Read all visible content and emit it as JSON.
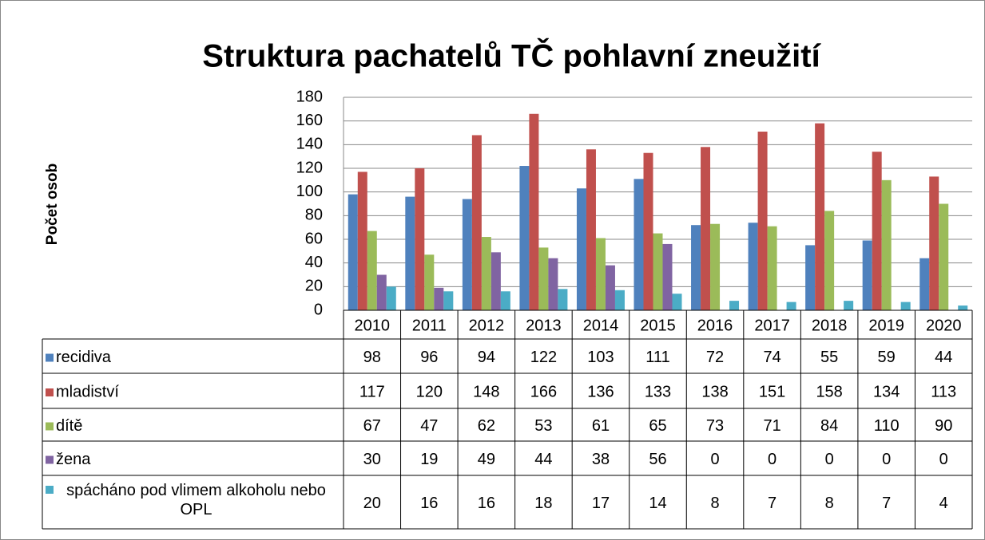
{
  "chart_data": {
    "type": "bar",
    "title": "Struktura pachatelů TČ pohlavní zneužití",
    "y_axis_label": "Počet osob",
    "categories": [
      "2010",
      "2011",
      "2012",
      "2013",
      "2014",
      "2015",
      "2016",
      "2017",
      "2018",
      "2019",
      "2020"
    ],
    "series": [
      {
        "name": "recidiva",
        "color": "#4f81bd",
        "values": [
          98,
          96,
          94,
          122,
          103,
          111,
          72,
          74,
          55,
          59,
          44
        ]
      },
      {
        "name": "mladiství",
        "color": "#c0504d",
        "values": [
          117,
          120,
          148,
          166,
          136,
          133,
          138,
          151,
          158,
          134,
          113
        ]
      },
      {
        "name": "dítě",
        "color": "#9bbb59",
        "values": [
          67,
          47,
          62,
          53,
          61,
          65,
          73,
          71,
          84,
          110,
          90
        ]
      },
      {
        "name": "žena",
        "color": "#8064a2",
        "values": [
          30,
          19,
          49,
          44,
          38,
          56,
          0,
          0,
          0,
          0,
          0
        ]
      },
      {
        "name": "spácháno pod vlimem alkoholu nebo OPL",
        "color": "#4bacc6",
        "values": [
          20,
          16,
          16,
          18,
          17,
          14,
          8,
          7,
          8,
          7,
          4
        ]
      }
    ],
    "ylim": [
      0,
      180
    ],
    "yticks": [
      0,
      20,
      40,
      60,
      80,
      100,
      120,
      140,
      160,
      180
    ],
    "grid": true
  }
}
